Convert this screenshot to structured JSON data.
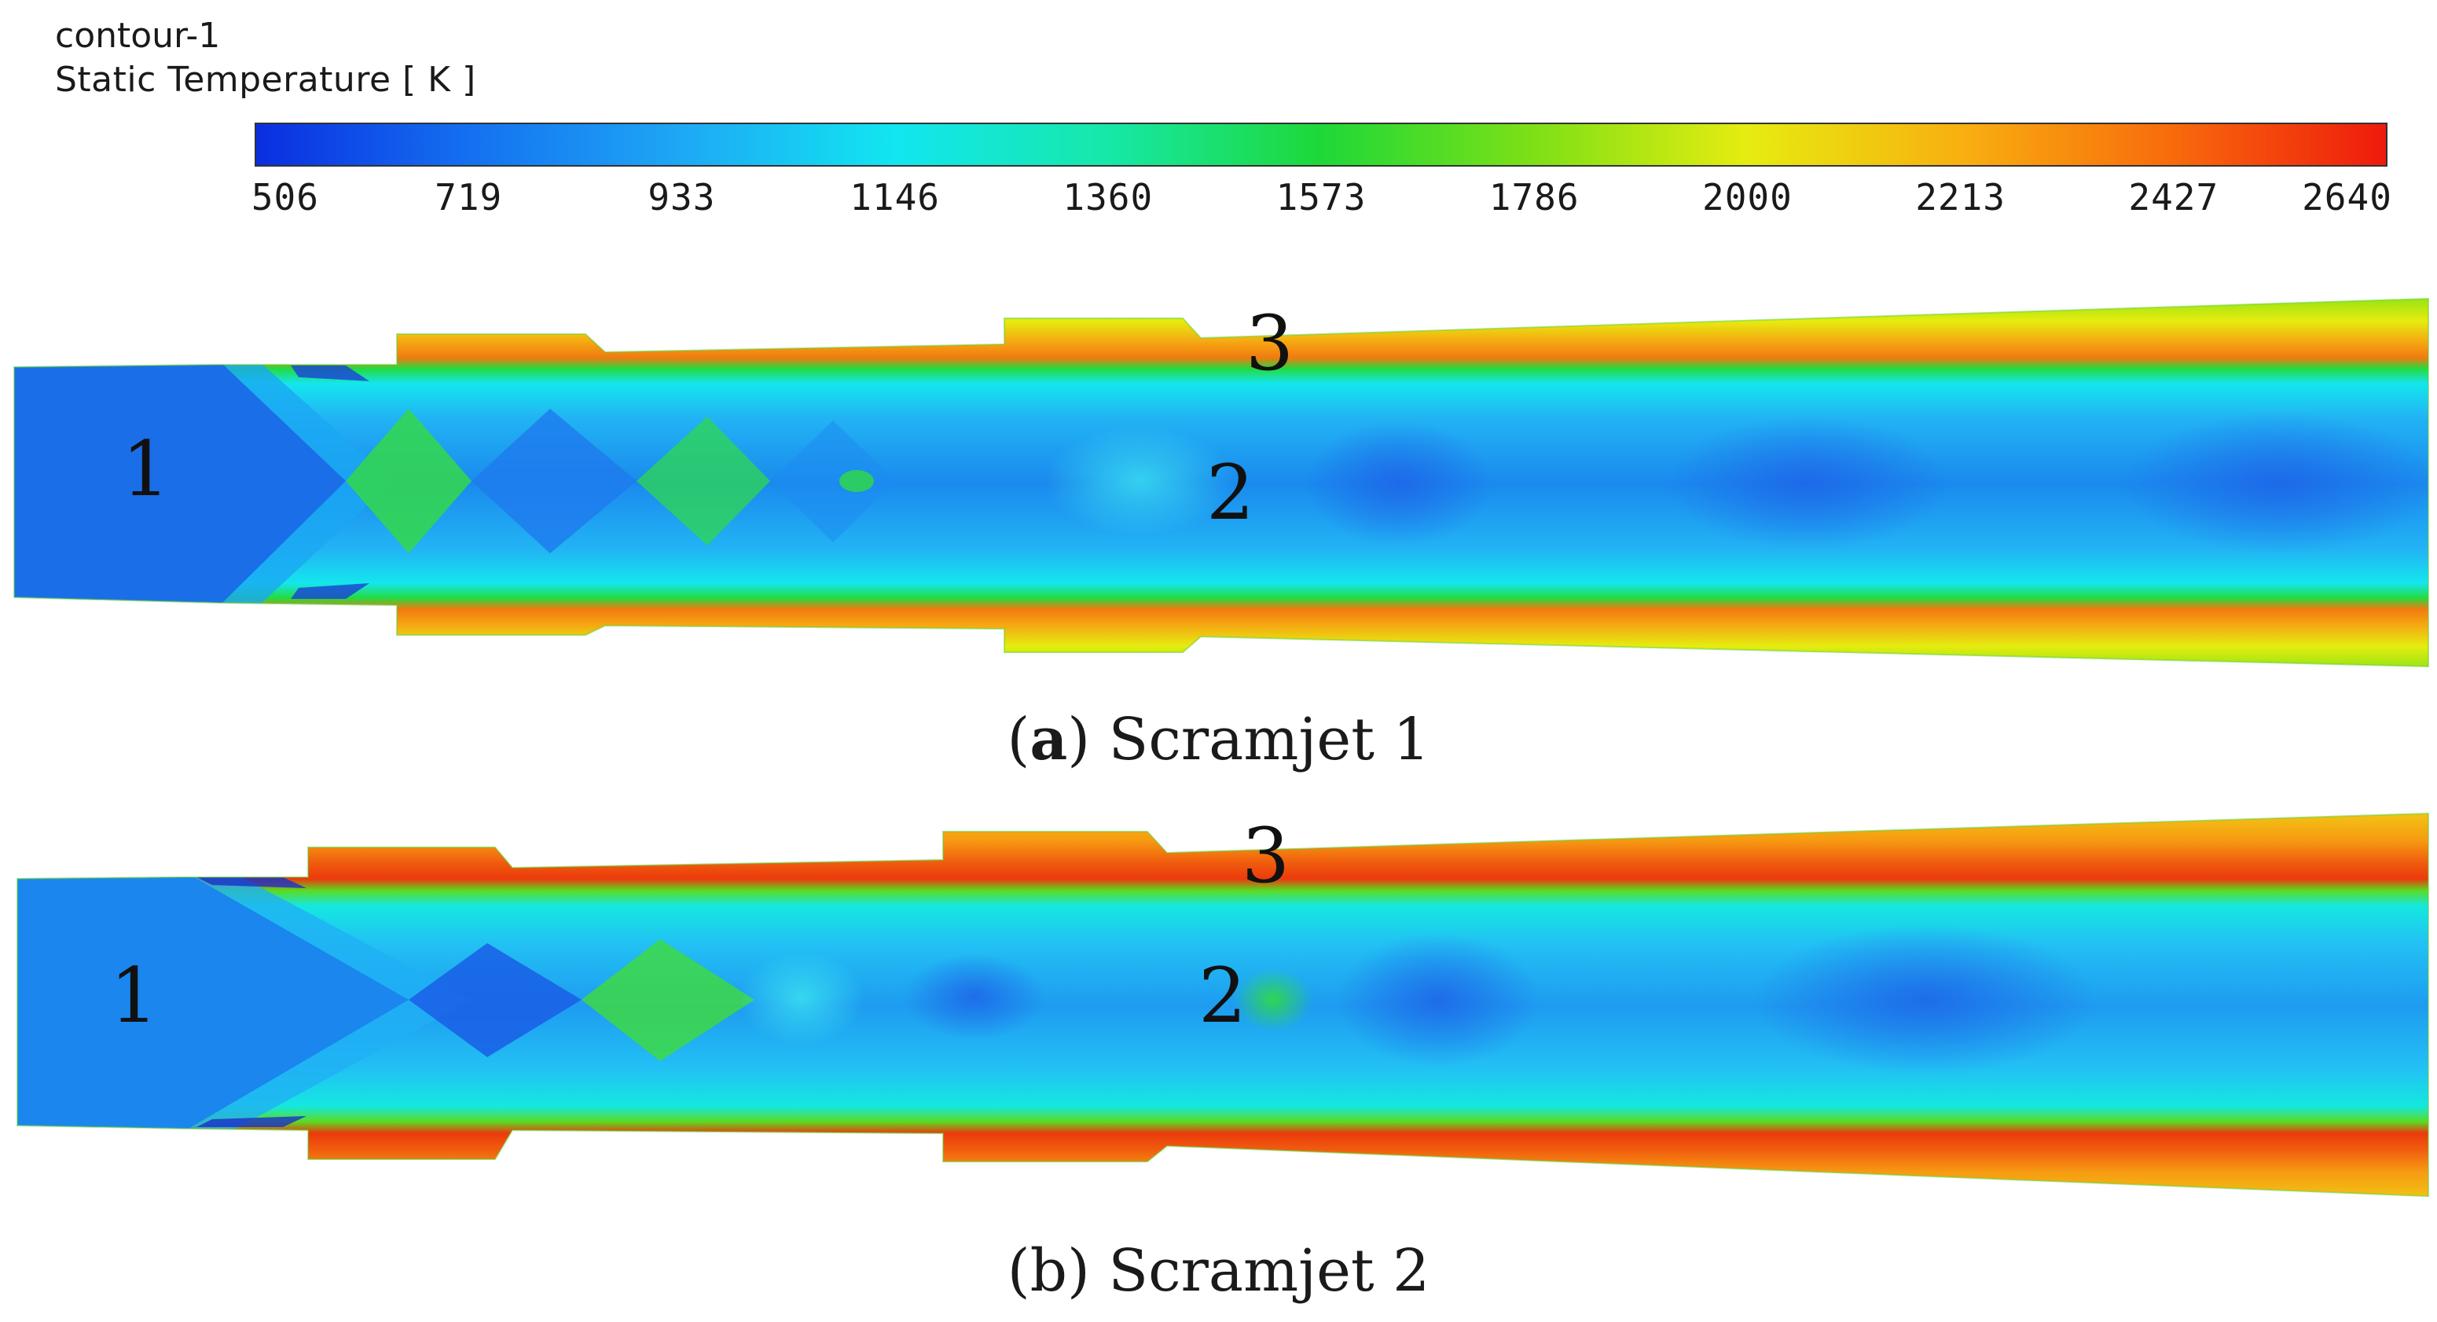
{
  "figure": {
    "title": "contour-1",
    "quantity": "Static Temperature [ K ]"
  },
  "colorbar": {
    "min": 506,
    "max": 2640,
    "tick_labels": [
      "506",
      "719",
      "933",
      "1146",
      "1360",
      "1573",
      "1786",
      "2000",
      "2213",
      "2427",
      "2640"
    ],
    "colormap": "rainbow",
    "colors": [
      "#0a2ee0",
      "#1470f0",
      "#1ea8f5",
      "#12e6f0",
      "#16e8a8",
      "#1ed838",
      "#7ee016",
      "#e6ec10",
      "#f8b010",
      "#f86a0c",
      "#ee1a0c"
    ]
  },
  "panels": [
    {
      "caption_letter": "a",
      "caption_text": "Scramjet 1",
      "labels": [
        "1",
        "2",
        "3"
      ]
    },
    {
      "caption_prefix": "(b) ",
      "caption_text": "Scramjet 2",
      "labels": [
        "1",
        "2",
        "3"
      ]
    }
  ]
}
